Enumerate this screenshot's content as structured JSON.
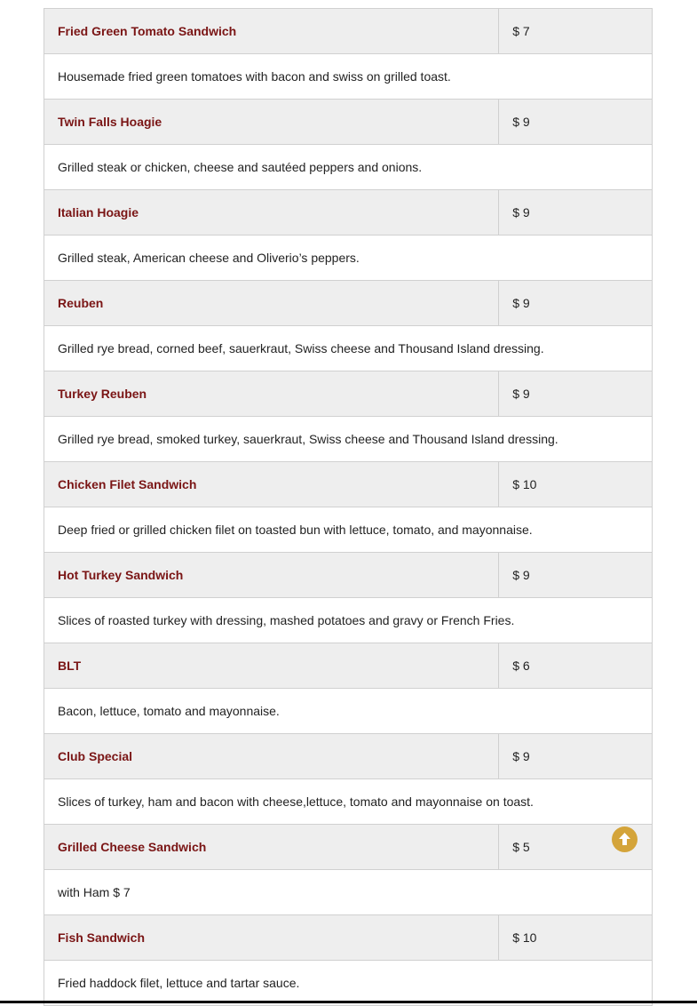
{
  "menu": [
    {
      "name": "Fried Green Tomato Sandwich",
      "price": "$ 7",
      "description": "Housemade fried green tomatoes with bacon and swiss on grilled toast."
    },
    {
      "name": "Twin Falls Hoagie",
      "price": "$ 9",
      "description": "Grilled steak or chicken, cheese and sautéed peppers and onions."
    },
    {
      "name": "Italian Hoagie",
      "price": "$ 9",
      "description": "Grilled steak, American cheese and Oliverio’s peppers."
    },
    {
      "name": "Reuben",
      "price": "$ 9",
      "description": "Grilled rye bread, corned beef, sauerkraut, Swiss cheese and Thousand Island dressing."
    },
    {
      "name": "Turkey Reuben",
      "price": "$ 9",
      "description": "Grilled rye bread, smoked turkey, sauerkraut, Swiss cheese and Thousand Island dressing."
    },
    {
      "name": "Chicken Filet Sandwich",
      "price": "$ 10",
      "description": "Deep fried or grilled chicken filet on toasted bun with lettuce, tomato, and mayonnaise."
    },
    {
      "name": "Hot Turkey Sandwich",
      "price": "$ 9",
      "description": "Slices of roasted turkey with dressing, mashed potatoes and gravy or French Fries."
    },
    {
      "name": "BLT",
      "price": "$ 6",
      "description": "Bacon, lettuce, tomato and mayonnaise."
    },
    {
      "name": "Club Special",
      "price": "$ 9",
      "description": "Slices of turkey, ham and bacon with cheese,lettuce, tomato and mayonnaise on toast."
    },
    {
      "name": "Grilled Cheese Sandwich",
      "price": "$ 5",
      "description": "with Ham $ 7"
    },
    {
      "name": "Fish Sandwich",
      "price": "$ 10",
      "description": "Fried haddock filet, lettuce and tartar sauce."
    }
  ],
  "colors": {
    "item_name": "#7a1515",
    "row_bg": "#eeeeee",
    "scroll_top_button": "#d4a43a"
  },
  "scroll_top": {
    "icon": "arrow-up-circle-icon"
  }
}
